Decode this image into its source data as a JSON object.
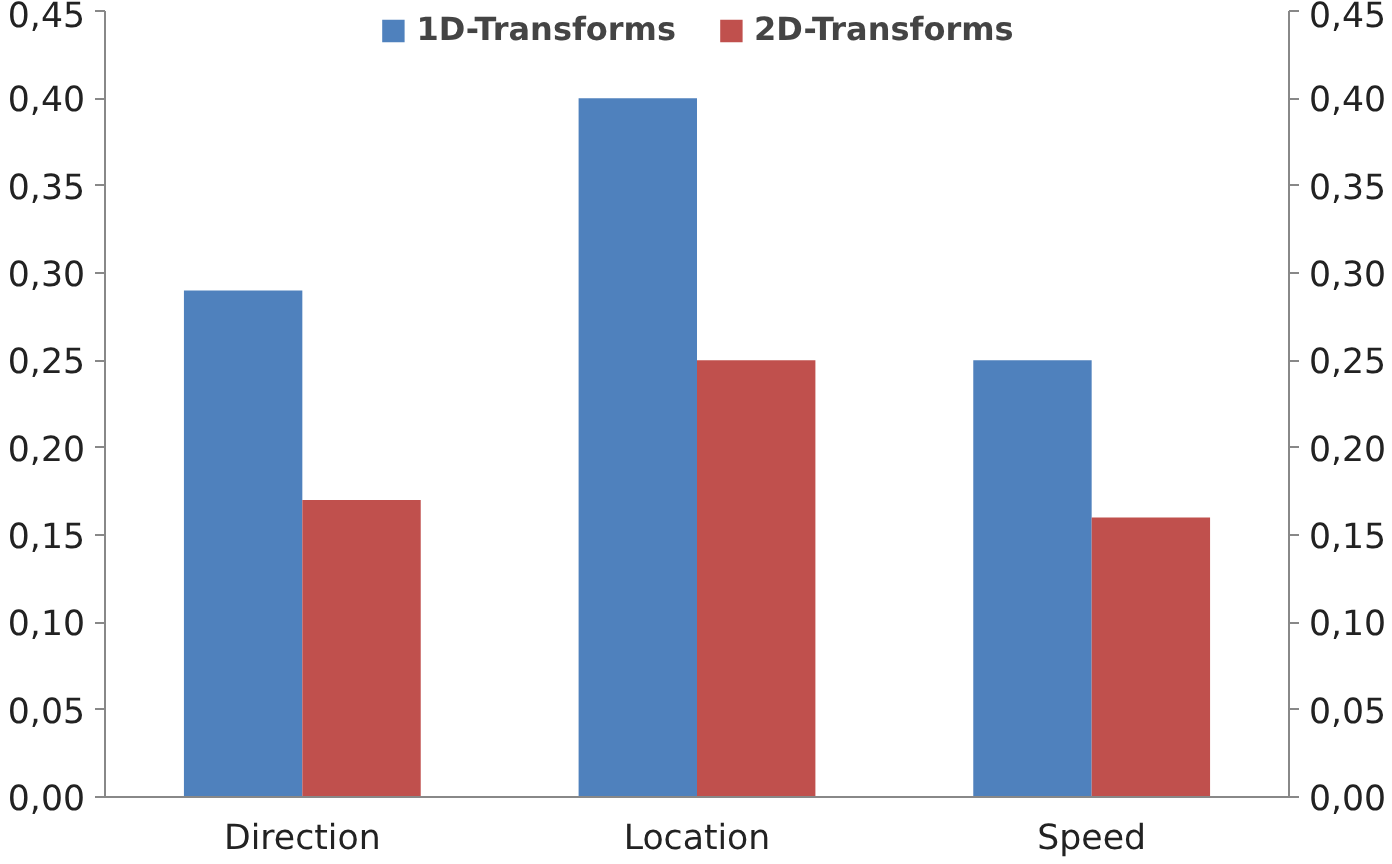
{
  "chart_data": {
    "type": "bar",
    "categories": [
      "Direction",
      "Location",
      "Speed"
    ],
    "series": [
      {
        "name": "1D-Transforms",
        "color": "#4f81bd",
        "values": [
          0.29,
          0.4,
          0.25
        ]
      },
      {
        "name": "2D-Transforms",
        "color": "#c0504d",
        "values": [
          0.17,
          0.25,
          0.16
        ]
      }
    ],
    "ylim": [
      0,
      0.45
    ],
    "yticks": [
      {
        "value": 0,
        "label": "0,00"
      },
      {
        "value": 0.05,
        "label": "0,05"
      },
      {
        "value": 0.1,
        "label": "0,10"
      },
      {
        "value": 0.15,
        "label": "0,15"
      },
      {
        "value": 0.2,
        "label": "0,20"
      },
      {
        "value": 0.25,
        "label": "0,25"
      },
      {
        "value": 0.3,
        "label": "0,30"
      },
      {
        "value": 0.35,
        "label": "0,35"
      },
      {
        "value": 0.4,
        "label": "0,40"
      },
      {
        "value": 0.45,
        "label": "0,45"
      }
    ],
    "y2lim": [
      0,
      0.45
    ],
    "y2ticks": [
      {
        "value": 0,
        "label": "0,00"
      },
      {
        "value": 0.05,
        "label": "0,05"
      },
      {
        "value": 0.1,
        "label": "0,10"
      },
      {
        "value": 0.15,
        "label": "0,15"
      },
      {
        "value": 0.2,
        "label": "0,20"
      },
      {
        "value": 0.25,
        "label": "0,25"
      },
      {
        "value": 0.3,
        "label": "0,30"
      },
      {
        "value": 0.35,
        "label": "0,35"
      },
      {
        "value": 0.4,
        "label": "0,40"
      },
      {
        "value": 0.45,
        "label": "0,45"
      }
    ],
    "legend": "top"
  }
}
